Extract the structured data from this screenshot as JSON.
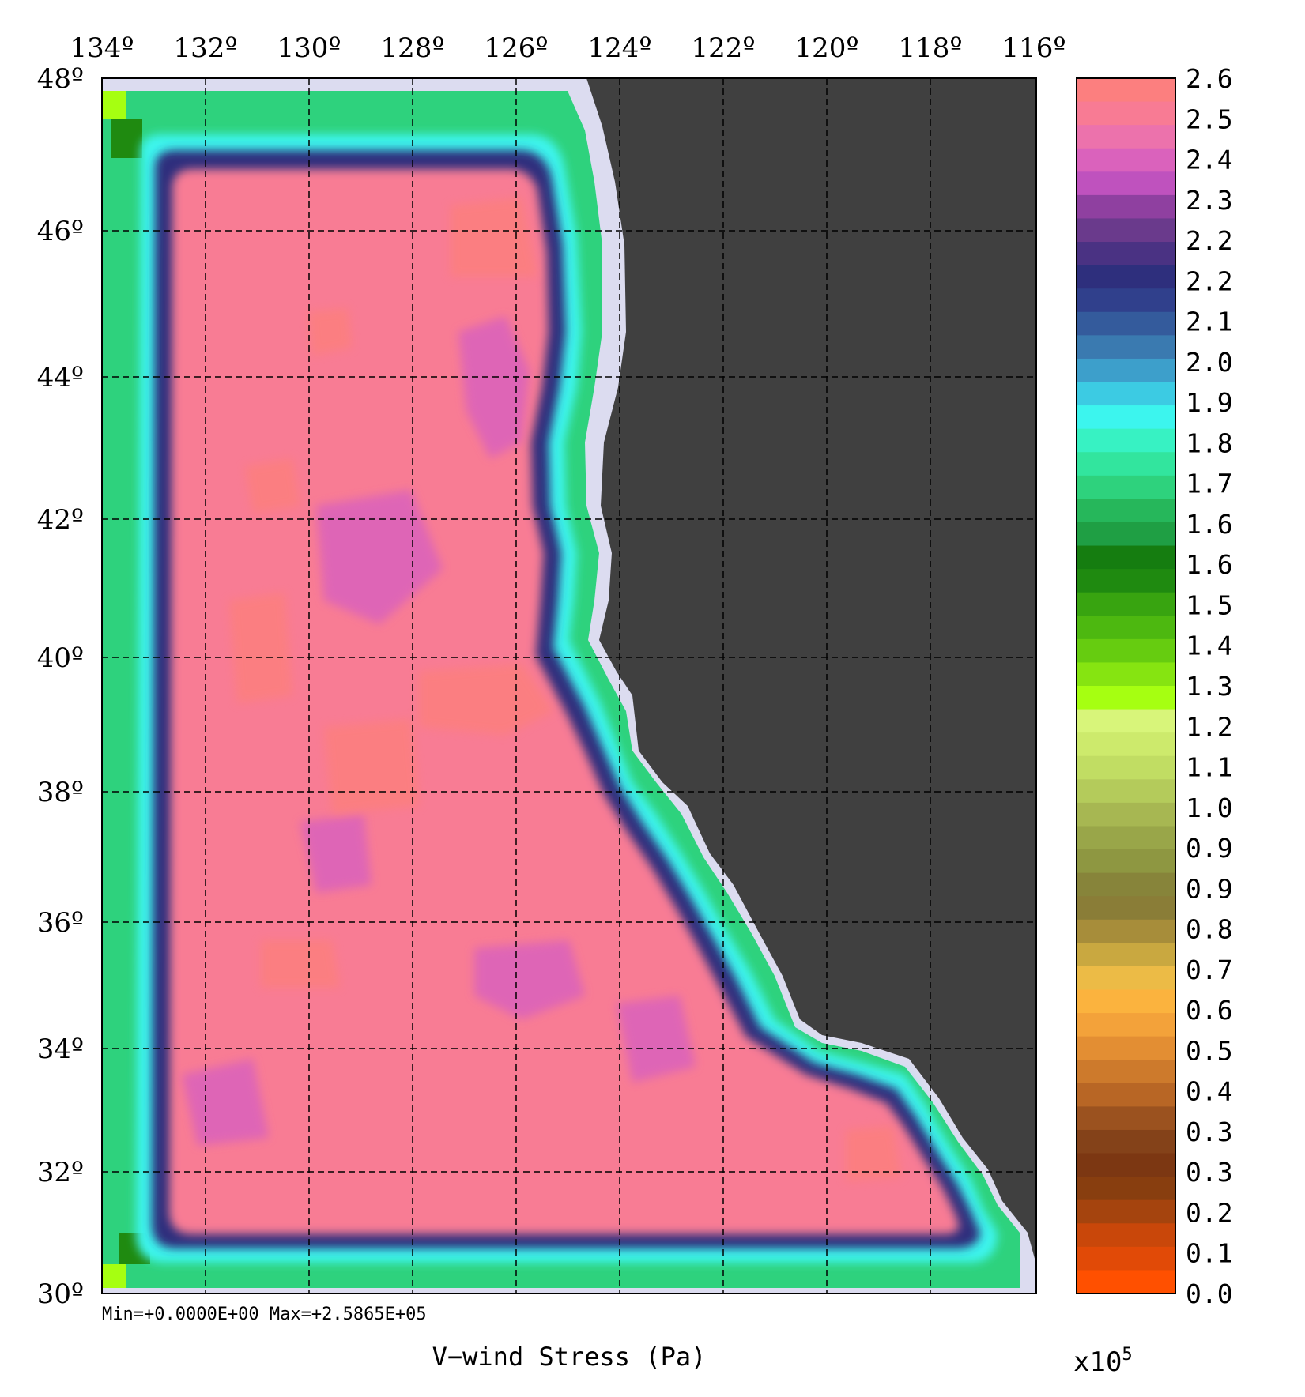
{
  "map": {
    "title": "V−wind Stress (Pa)",
    "stats": "Min=+0.0000E+00   Max=+2.5865E+05",
    "lon_labels": [
      "134º",
      "132º",
      "130º",
      "128º",
      "126º",
      "124º",
      "122º",
      "120º",
      "118º",
      "116º"
    ],
    "lat_labels": [
      "48º",
      "46º",
      "44º",
      "42º",
      "40º",
      "38º",
      "36º",
      "34º",
      "32º",
      "30º"
    ],
    "land_color": "#404040",
    "coast_color": "#dcdcf0"
  },
  "colorbar": {
    "scale_label": "x10",
    "scale_exponent": "5",
    "tick_labels": [
      "2.6",
      "2.5",
      "2.4",
      "2.3",
      "2.2",
      "2.2",
      "2.1",
      "2.0",
      "1.9",
      "1.8",
      "1.7",
      "1.6",
      "1.6",
      "1.5",
      "1.4",
      "1.3",
      "1.2",
      "1.1",
      "1.0",
      "0.9",
      "0.9",
      "0.8",
      "0.7",
      "0.6",
      "0.5",
      "0.4",
      "0.3",
      "0.3",
      "0.2",
      "0.1",
      "0.0"
    ],
    "colors_top_to_bottom": [
      "#fc7f7f",
      "#f87b94",
      "#ec72ac",
      "#da62bc",
      "#bf52be",
      "#8f40a0",
      "#6a3a8c",
      "#4a3283",
      "#2e2f7d",
      "#30408c",
      "#345b9c",
      "#3a7ab0",
      "#3d9fcb",
      "#3ccbe3",
      "#3cf5ee",
      "#37f2c3",
      "#32e59e",
      "#2ed27d",
      "#26b75b",
      "#1f9f44",
      "#157d10",
      "#1f8a10",
      "#38a410",
      "#4db810",
      "#66cc10",
      "#86e411",
      "#a6ff11",
      "#d8f57a",
      "#cdea6c",
      "#c1dd63",
      "#b4cb5b",
      "#a7b752",
      "#99a649",
      "#8e9741",
      "#87843a",
      "#8a7d37",
      "#a78d3a",
      "#c9a840",
      "#ecbb46",
      "#fbb33e",
      "#f3a23a",
      "#e38e33",
      "#cd7a2c",
      "#b86625",
      "#9b521f",
      "#844219",
      "#7c3712",
      "#883e0f",
      "#a5440e",
      "#c9470a",
      "#e14a07",
      "#ff5000"
    ]
  }
}
